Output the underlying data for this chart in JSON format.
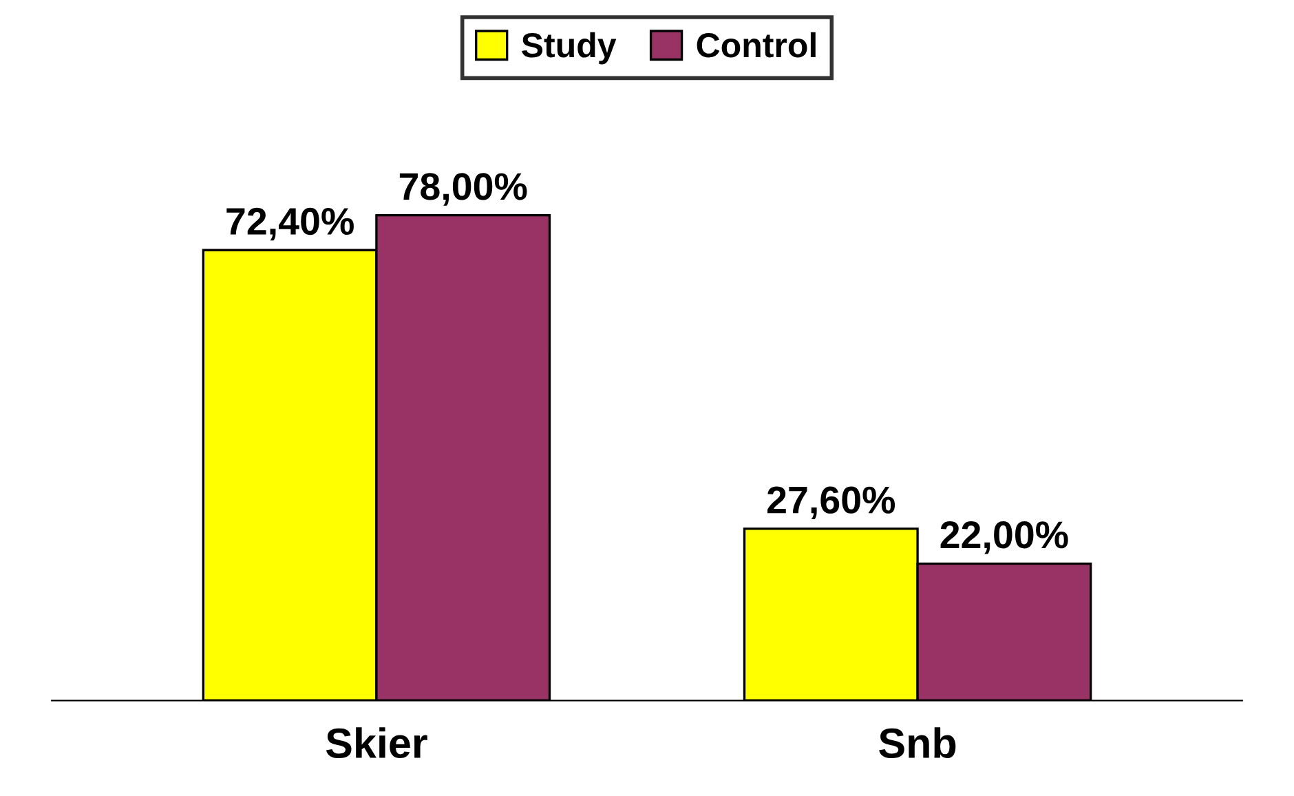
{
  "chart_data": {
    "type": "bar",
    "categories": [
      "Skier",
      "Snb"
    ],
    "series": [
      {
        "name": "Study",
        "color": "#ffff00",
        "values": [
          72.4,
          27.6
        ],
        "value_labels": [
          "72,40%",
          "27,60%"
        ]
      },
      {
        "name": "Control",
        "color": "#993366",
        "values": [
          78.0,
          22.0
        ],
        "value_labels": [
          "78,00%",
          "22,00%"
        ]
      }
    ],
    "legend": "top",
    "tick_labels": "x",
    "grid": false
  }
}
